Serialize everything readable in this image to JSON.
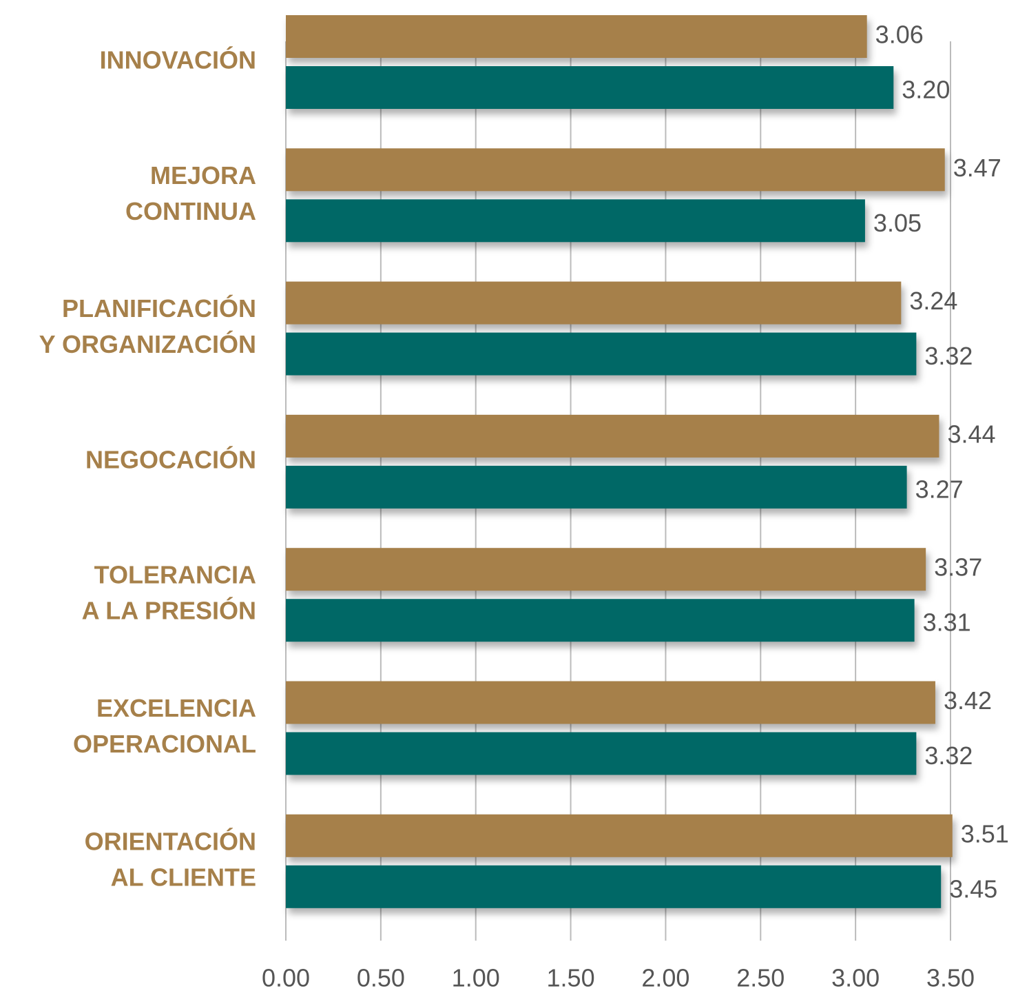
{
  "chart_data": {
    "type": "bar",
    "orientation": "horizontal",
    "categories": [
      [
        "INNOVACIÓN"
      ],
      [
        "MEJORA",
        "CONTINUA"
      ],
      [
        "PLANIFICACIÓN",
        "Y ORGANIZACIÓN"
      ],
      [
        "NEGOCACIÓN"
      ],
      [
        "TOLERANCIA",
        "A LA PRESIÓN"
      ],
      [
        "EXCELENCIA",
        "OPERACIONAL"
      ],
      [
        "ORIENTACIÓN",
        "AL CLIENTE"
      ]
    ],
    "series": [
      {
        "color": "#a6804a",
        "values": [
          3.06,
          3.47,
          3.24,
          3.44,
          3.37,
          3.42,
          3.51
        ],
        "value_labels": [
          "3.06",
          "3.47",
          "3.24",
          "3.44",
          "3.37",
          "3.42",
          "3.51"
        ]
      },
      {
        "color": "#006866",
        "values": [
          3.2,
          3.05,
          3.32,
          3.27,
          3.31,
          3.32,
          3.45
        ],
        "value_labels": [
          "3.20",
          "3.05",
          "3.32",
          "3.27",
          "3.31",
          "3.32",
          "3.45"
        ]
      }
    ],
    "xlim": [
      0,
      3.5
    ],
    "xticks": [
      {
        "value": 0,
        "label": "0.00"
      },
      {
        "value": 0.5,
        "label": "0.50"
      },
      {
        "value": 1,
        "label": "1.00"
      },
      {
        "value": 1.5,
        "label": "1.50"
      },
      {
        "value": 2,
        "label": "2.00"
      },
      {
        "value": 2.5,
        "label": "2.50"
      },
      {
        "value": 3,
        "label": "3.00"
      },
      {
        "value": 3.5,
        "label": "3.50"
      }
    ],
    "grid": true
  }
}
